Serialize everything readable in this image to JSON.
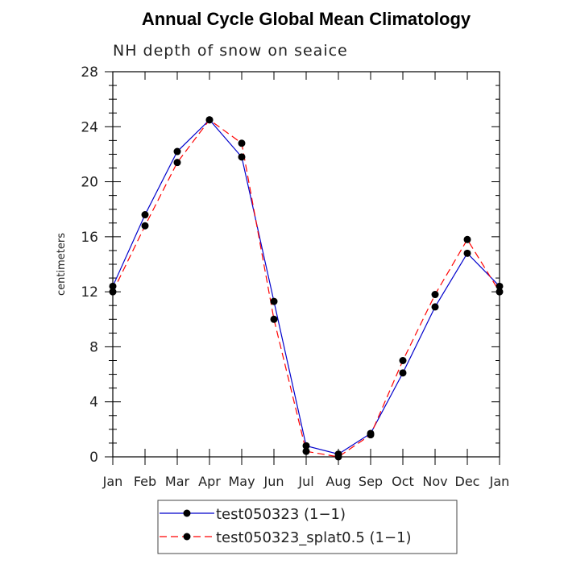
{
  "chart_data": {
    "type": "line",
    "title": "Annual Cycle Global Mean Climatology",
    "subtitle": "NH depth of snow on seaice",
    "ylabel": "centimeters",
    "xlabel": "",
    "categories": [
      "Jan",
      "Feb",
      "Mar",
      "Apr",
      "May",
      "Jun",
      "Jul",
      "Aug",
      "Sep",
      "Oct",
      "Nov",
      "Dec",
      "Jan"
    ],
    "ylim": [
      0,
      28
    ],
    "yticks": [
      0,
      4,
      8,
      12,
      16,
      20,
      24,
      28
    ],
    "series": [
      {
        "name": "test050323 (1−1)",
        "color": "#0000cc",
        "style": "solid",
        "values": [
          12.4,
          17.6,
          22.2,
          24.5,
          21.8,
          11.3,
          0.8,
          0.2,
          1.7,
          6.1,
          10.9,
          14.8,
          12.4
        ]
      },
      {
        "name": "test050323_splat0.5 (1−1)",
        "color": "#ff0000",
        "style": "dashed",
        "values": [
          12.0,
          16.8,
          21.4,
          24.5,
          22.8,
          10.0,
          0.4,
          0.0,
          1.6,
          7.0,
          11.8,
          15.8,
          12.0
        ]
      }
    ],
    "legend_position": "bottom",
    "grid": false
  }
}
